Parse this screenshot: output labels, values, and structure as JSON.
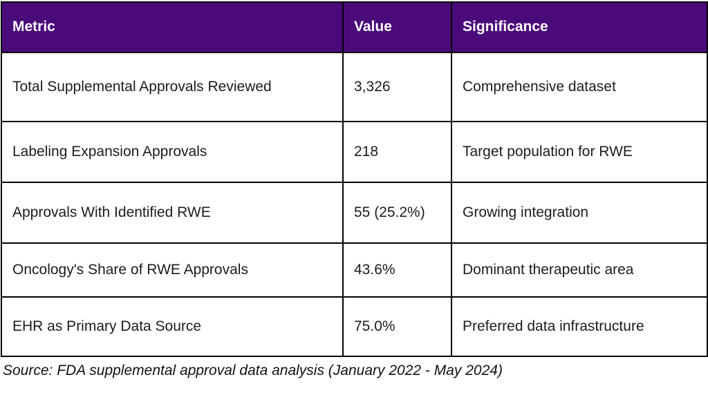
{
  "chart_data": {
    "type": "table",
    "title": "",
    "columns": [
      "Metric",
      "Value",
      "Significance"
    ],
    "rows": [
      {
        "metric": "Total Supplemental Approvals Reviewed",
        "value": "3,326",
        "significance": "Comprehensive dataset"
      },
      {
        "metric": "Labeling Expansion Approvals",
        "value": "218",
        "significance": "Target population for RWE"
      },
      {
        "metric": "Approvals With Identified RWE",
        "value": "55 (25.2%)",
        "significance": "Growing integration"
      },
      {
        "metric": "Oncology's Share of RWE Approvals",
        "value": "43.6%",
        "significance": "Dominant therapeutic area"
      },
      {
        "metric": "EHR as Primary Data Source",
        "value": "75.0%",
        "significance": "Preferred data infrastructure"
      }
    ],
    "source": "Source: FDA supplemental approval data analysis (January 2022 - May 2024)"
  },
  "colors": {
    "header_bg": "#4b0a7a",
    "header_text": "#ffffff",
    "body_text": "#1c1c1c",
    "border": "#000000",
    "page_bg": "#ffffff"
  }
}
